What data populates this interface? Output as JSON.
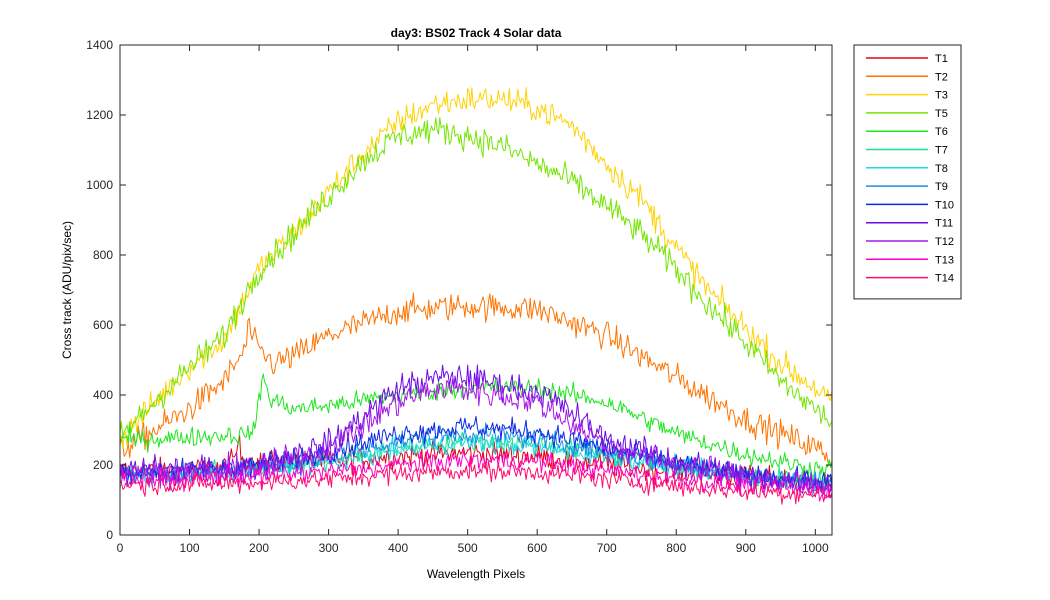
{
  "chart_data": {
    "type": "line",
    "title": "day3: BS02  Track 4 Solar data",
    "xlabel": "Wavelength Pixels",
    "ylabel": "Cross track (ADU/pix/sec)",
    "xlim": [
      0,
      1024
    ],
    "ylim": [
      0,
      1400
    ],
    "xticks": [
      0,
      100,
      200,
      300,
      400,
      500,
      600,
      700,
      800,
      900,
      1000
    ],
    "yticks": [
      0,
      200,
      400,
      600,
      800,
      1000,
      1200,
      1400
    ],
    "grid": false,
    "legend_position": "outside-right",
    "series": [
      {
        "name": "T1",
        "color": "#e6001a",
        "points": [
          [
            0,
            185
          ],
          [
            100,
            185
          ],
          [
            150,
            195
          ],
          [
            165,
            215
          ],
          [
            170,
            270
          ],
          [
            175,
            220
          ],
          [
            200,
            205
          ],
          [
            300,
            210
          ],
          [
            400,
            225
          ],
          [
            500,
            235
          ],
          [
            600,
            225
          ],
          [
            700,
            200
          ],
          [
            800,
            180
          ],
          [
            900,
            165
          ],
          [
            1024,
            150
          ]
        ],
        "noise": 30
      },
      {
        "name": "T2",
        "color": "#ff7300",
        "points": [
          [
            0,
            240
          ],
          [
            50,
            300
          ],
          [
            100,
            360
          ],
          [
            150,
            440
          ],
          [
            180,
            530
          ],
          [
            185,
            600
          ],
          [
            195,
            540
          ],
          [
            220,
            490
          ],
          [
            250,
            510
          ],
          [
            300,
            570
          ],
          [
            400,
            640
          ],
          [
            500,
            655
          ],
          [
            600,
            645
          ],
          [
            700,
            570
          ],
          [
            800,
            450
          ],
          [
            900,
            330
          ],
          [
            1000,
            250
          ],
          [
            1024,
            220
          ]
        ],
        "noise": 35
      },
      {
        "name": "T3",
        "color": "#ffd200",
        "points": [
          [
            0,
            270
          ],
          [
            50,
            380
          ],
          [
            100,
            480
          ],
          [
            150,
            560
          ],
          [
            200,
            760
          ],
          [
            250,
            860
          ],
          [
            300,
            980
          ],
          [
            350,
            1090
          ],
          [
            400,
            1180
          ],
          [
            450,
            1230
          ],
          [
            500,
            1245
          ],
          [
            550,
            1245
          ],
          [
            600,
            1220
          ],
          [
            650,
            1170
          ],
          [
            700,
            1060
          ],
          [
            750,
            960
          ],
          [
            800,
            820
          ],
          [
            850,
            690
          ],
          [
            900,
            590
          ],
          [
            950,
            490
          ],
          [
            1000,
            420
          ],
          [
            1024,
            380
          ]
        ],
        "noise": 35
      },
      {
        "name": "T5",
        "color": "#73e600",
        "points": [
          [
            0,
            280
          ],
          [
            50,
            380
          ],
          [
            100,
            480
          ],
          [
            150,
            570
          ],
          [
            200,
            760
          ],
          [
            250,
            860
          ],
          [
            300,
            970
          ],
          [
            350,
            1070
          ],
          [
            400,
            1140
          ],
          [
            450,
            1160
          ],
          [
            500,
            1140
          ],
          [
            550,
            1110
          ],
          [
            600,
            1060
          ],
          [
            650,
            1010
          ],
          [
            700,
            940
          ],
          [
            750,
            860
          ],
          [
            800,
            760
          ],
          [
            850,
            650
          ],
          [
            900,
            550
          ],
          [
            950,
            440
          ],
          [
            1000,
            360
          ],
          [
            1024,
            320
          ]
        ],
        "noise": 35
      },
      {
        "name": "T6",
        "color": "#1ee61e",
        "points": [
          [
            0,
            270
          ],
          [
            100,
            280
          ],
          [
            150,
            285
          ],
          [
            180,
            285
          ],
          [
            195,
            310
          ],
          [
            205,
            460
          ],
          [
            215,
            390
          ],
          [
            250,
            360
          ],
          [
            300,
            370
          ],
          [
            400,
            400
          ],
          [
            500,
            420
          ],
          [
            600,
            420
          ],
          [
            700,
            380
          ],
          [
            800,
            290
          ],
          [
            900,
            230
          ],
          [
            1000,
            190
          ],
          [
            1024,
            190
          ]
        ],
        "noise": 25
      },
      {
        "name": "T7",
        "color": "#19e68c",
        "points": [
          [
            0,
            175
          ],
          [
            100,
            180
          ],
          [
            200,
            195
          ],
          [
            300,
            210
          ],
          [
            400,
            250
          ],
          [
            500,
            270
          ],
          [
            600,
            260
          ],
          [
            700,
            230
          ],
          [
            800,
            200
          ],
          [
            900,
            170
          ],
          [
            1024,
            150
          ]
        ],
        "noise": 25
      },
      {
        "name": "T8",
        "color": "#19d7e6",
        "points": [
          [
            0,
            165
          ],
          [
            100,
            170
          ],
          [
            200,
            185
          ],
          [
            300,
            205
          ],
          [
            400,
            245
          ],
          [
            500,
            265
          ],
          [
            600,
            250
          ],
          [
            700,
            225
          ],
          [
            800,
            195
          ],
          [
            900,
            165
          ],
          [
            1024,
            145
          ]
        ],
        "noise": 25
      },
      {
        "name": "T9",
        "color": "#1e8ce6",
        "points": [
          [
            0,
            170
          ],
          [
            100,
            175
          ],
          [
            200,
            190
          ],
          [
            300,
            220
          ],
          [
            400,
            270
          ],
          [
            500,
            290
          ],
          [
            600,
            275
          ],
          [
            700,
            240
          ],
          [
            800,
            200
          ],
          [
            900,
            170
          ],
          [
            1024,
            150
          ]
        ],
        "noise": 25
      },
      {
        "name": "T10",
        "color": "#0a28e6",
        "points": [
          [
            0,
            180
          ],
          [
            100,
            185
          ],
          [
            200,
            200
          ],
          [
            300,
            240
          ],
          [
            400,
            290
          ],
          [
            500,
            310
          ],
          [
            600,
            295
          ],
          [
            700,
            250
          ],
          [
            800,
            205
          ],
          [
            900,
            170
          ],
          [
            1024,
            150
          ]
        ],
        "noise": 28
      },
      {
        "name": "T11",
        "color": "#6e0ae6",
        "points": [
          [
            0,
            185
          ],
          [
            100,
            185
          ],
          [
            200,
            195
          ],
          [
            300,
            260
          ],
          [
            400,
            420
          ],
          [
            460,
            450
          ],
          [
            500,
            450
          ],
          [
            600,
            410
          ],
          [
            650,
            350
          ],
          [
            700,
            270
          ],
          [
            800,
            210
          ],
          [
            900,
            170
          ],
          [
            1024,
            145
          ]
        ],
        "noise": 35
      },
      {
        "name": "T12",
        "color": "#a519e6",
        "points": [
          [
            0,
            180
          ],
          [
            100,
            180
          ],
          [
            200,
            190
          ],
          [
            300,
            245
          ],
          [
            400,
            380
          ],
          [
            460,
            420
          ],
          [
            500,
            415
          ],
          [
            600,
            380
          ],
          [
            650,
            320
          ],
          [
            700,
            255
          ],
          [
            800,
            200
          ],
          [
            900,
            165
          ],
          [
            1024,
            140
          ]
        ],
        "noise": 35
      },
      {
        "name": "T13",
        "color": "#ff00c8",
        "points": [
          [
            0,
            160
          ],
          [
            100,
            160
          ],
          [
            200,
            170
          ],
          [
            300,
            180
          ],
          [
            400,
            200
          ],
          [
            500,
            215
          ],
          [
            600,
            210
          ],
          [
            700,
            185
          ],
          [
            800,
            160
          ],
          [
            900,
            140
          ],
          [
            1024,
            125
          ]
        ],
        "noise": 25
      },
      {
        "name": "T14",
        "color": "#ff0a6e",
        "points": [
          [
            0,
            145
          ],
          [
            100,
            145
          ],
          [
            200,
            150
          ],
          [
            300,
            160
          ],
          [
            400,
            175
          ],
          [
            500,
            185
          ],
          [
            600,
            180
          ],
          [
            700,
            160
          ],
          [
            800,
            140
          ],
          [
            900,
            125
          ],
          [
            1024,
            115
          ]
        ],
        "noise": 25
      }
    ]
  }
}
